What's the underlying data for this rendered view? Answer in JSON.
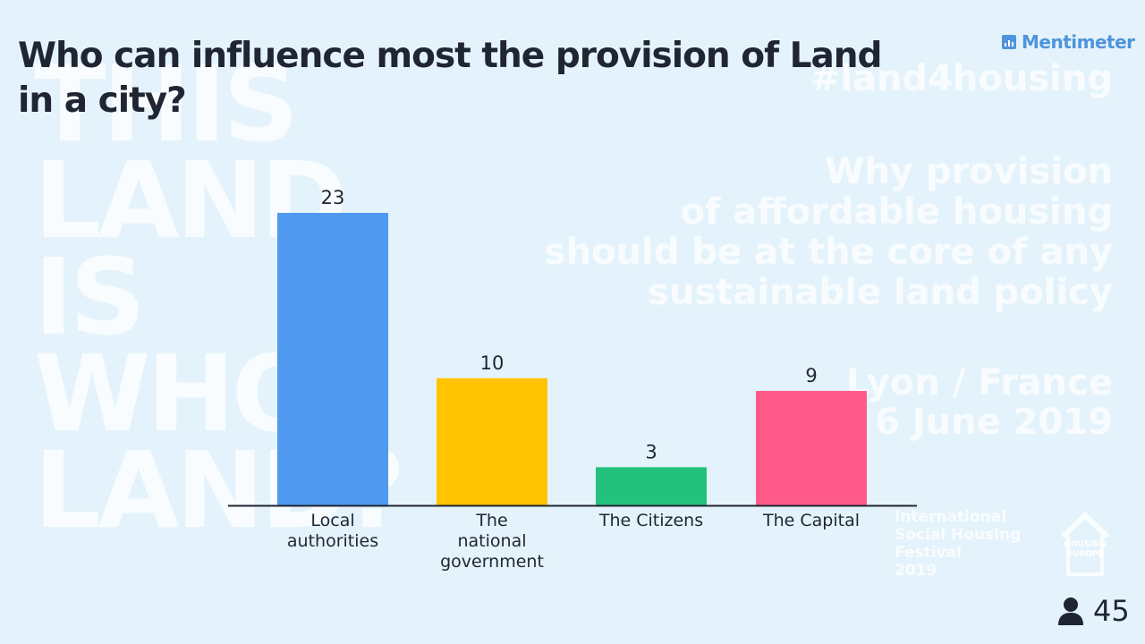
{
  "question": "Who can influence most the provision of Land in a city?",
  "brand": {
    "name": "Mentimeter",
    "color": "#4f94dc"
  },
  "background": {
    "big_text_lines": [
      "THIS",
      "LAND",
      "IS",
      "WHOS",
      "LAND?"
    ],
    "hashtag": "#land4housing",
    "headline_lines": [
      "Why provision",
      "of affordable housing",
      "should be at the core of any",
      "sustainable land policy"
    ],
    "event_lines": [
      "Lyon / France",
      "6 June 2019"
    ],
    "festival_lines": [
      "International",
      "Social Housing",
      "Festival",
      "2019"
    ],
    "org_logo_lines": [
      "HOUSING",
      "EUROPE"
    ]
  },
  "participants": {
    "count": "45",
    "icon": "person-icon"
  },
  "chart_data": {
    "type": "bar",
    "categories": [
      "Local authorities",
      "The national government",
      "The Citizens",
      "The Capital"
    ],
    "values": [
      23,
      10,
      3,
      9
    ],
    "value_labels": [
      "23",
      "10",
      "3",
      "9"
    ],
    "category_label_lines": [
      [
        "Local",
        "authorities"
      ],
      [
        "The",
        "national",
        "government"
      ],
      [
        "The Citizens"
      ],
      [
        "The Capital"
      ]
    ],
    "colors": [
      "#4f9aee",
      "#ffc300",
      "#22c27c",
      "#ff5a8a"
    ],
    "ylim": [
      0,
      23
    ],
    "title": "Who can influence most the provision of Land in a city?",
    "xlabel": "",
    "ylabel": "",
    "grid": false,
    "legend": "none"
  }
}
